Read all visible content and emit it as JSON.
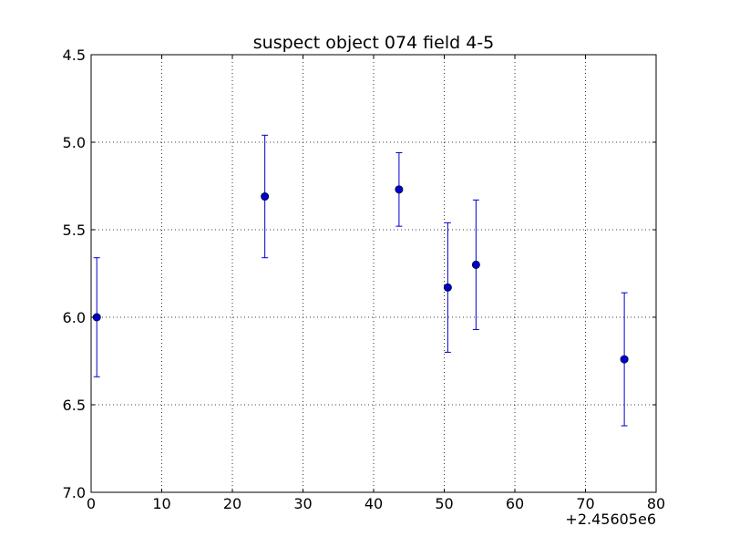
{
  "chart_data": {
    "type": "scatter",
    "title": "suspect object 074 field 4-5",
    "xlabel": "",
    "ylabel": "",
    "x_offset_label": "+2.45605e6",
    "xlim": [
      0,
      80
    ],
    "ylim": [
      4.5,
      7.0
    ],
    "y_inverted": true,
    "grid": true,
    "x_ticks": [
      0,
      10,
      20,
      30,
      40,
      50,
      60,
      70,
      80
    ],
    "x_tick_labels": [
      "0",
      "10",
      "20",
      "30",
      "40",
      "50",
      "60",
      "70",
      "80"
    ],
    "y_ticks": [
      4.5,
      5.0,
      5.5,
      6.0,
      6.5,
      7.0
    ],
    "y_tick_labels": [
      "4.5",
      "5.0",
      "5.5",
      "6.0",
      "6.5",
      "7.0"
    ],
    "marker_color": "#0000cc",
    "points": [
      {
        "x": 0.8,
        "y": 6.0,
        "err": 0.34
      },
      {
        "x": 24.6,
        "y": 5.31,
        "err": 0.35
      },
      {
        "x": 43.6,
        "y": 5.27,
        "err": 0.21
      },
      {
        "x": 50.5,
        "y": 5.83,
        "err": 0.37
      },
      {
        "x": 54.5,
        "y": 5.7,
        "err": 0.37
      },
      {
        "x": 75.5,
        "y": 6.24,
        "err": 0.38
      }
    ]
  }
}
